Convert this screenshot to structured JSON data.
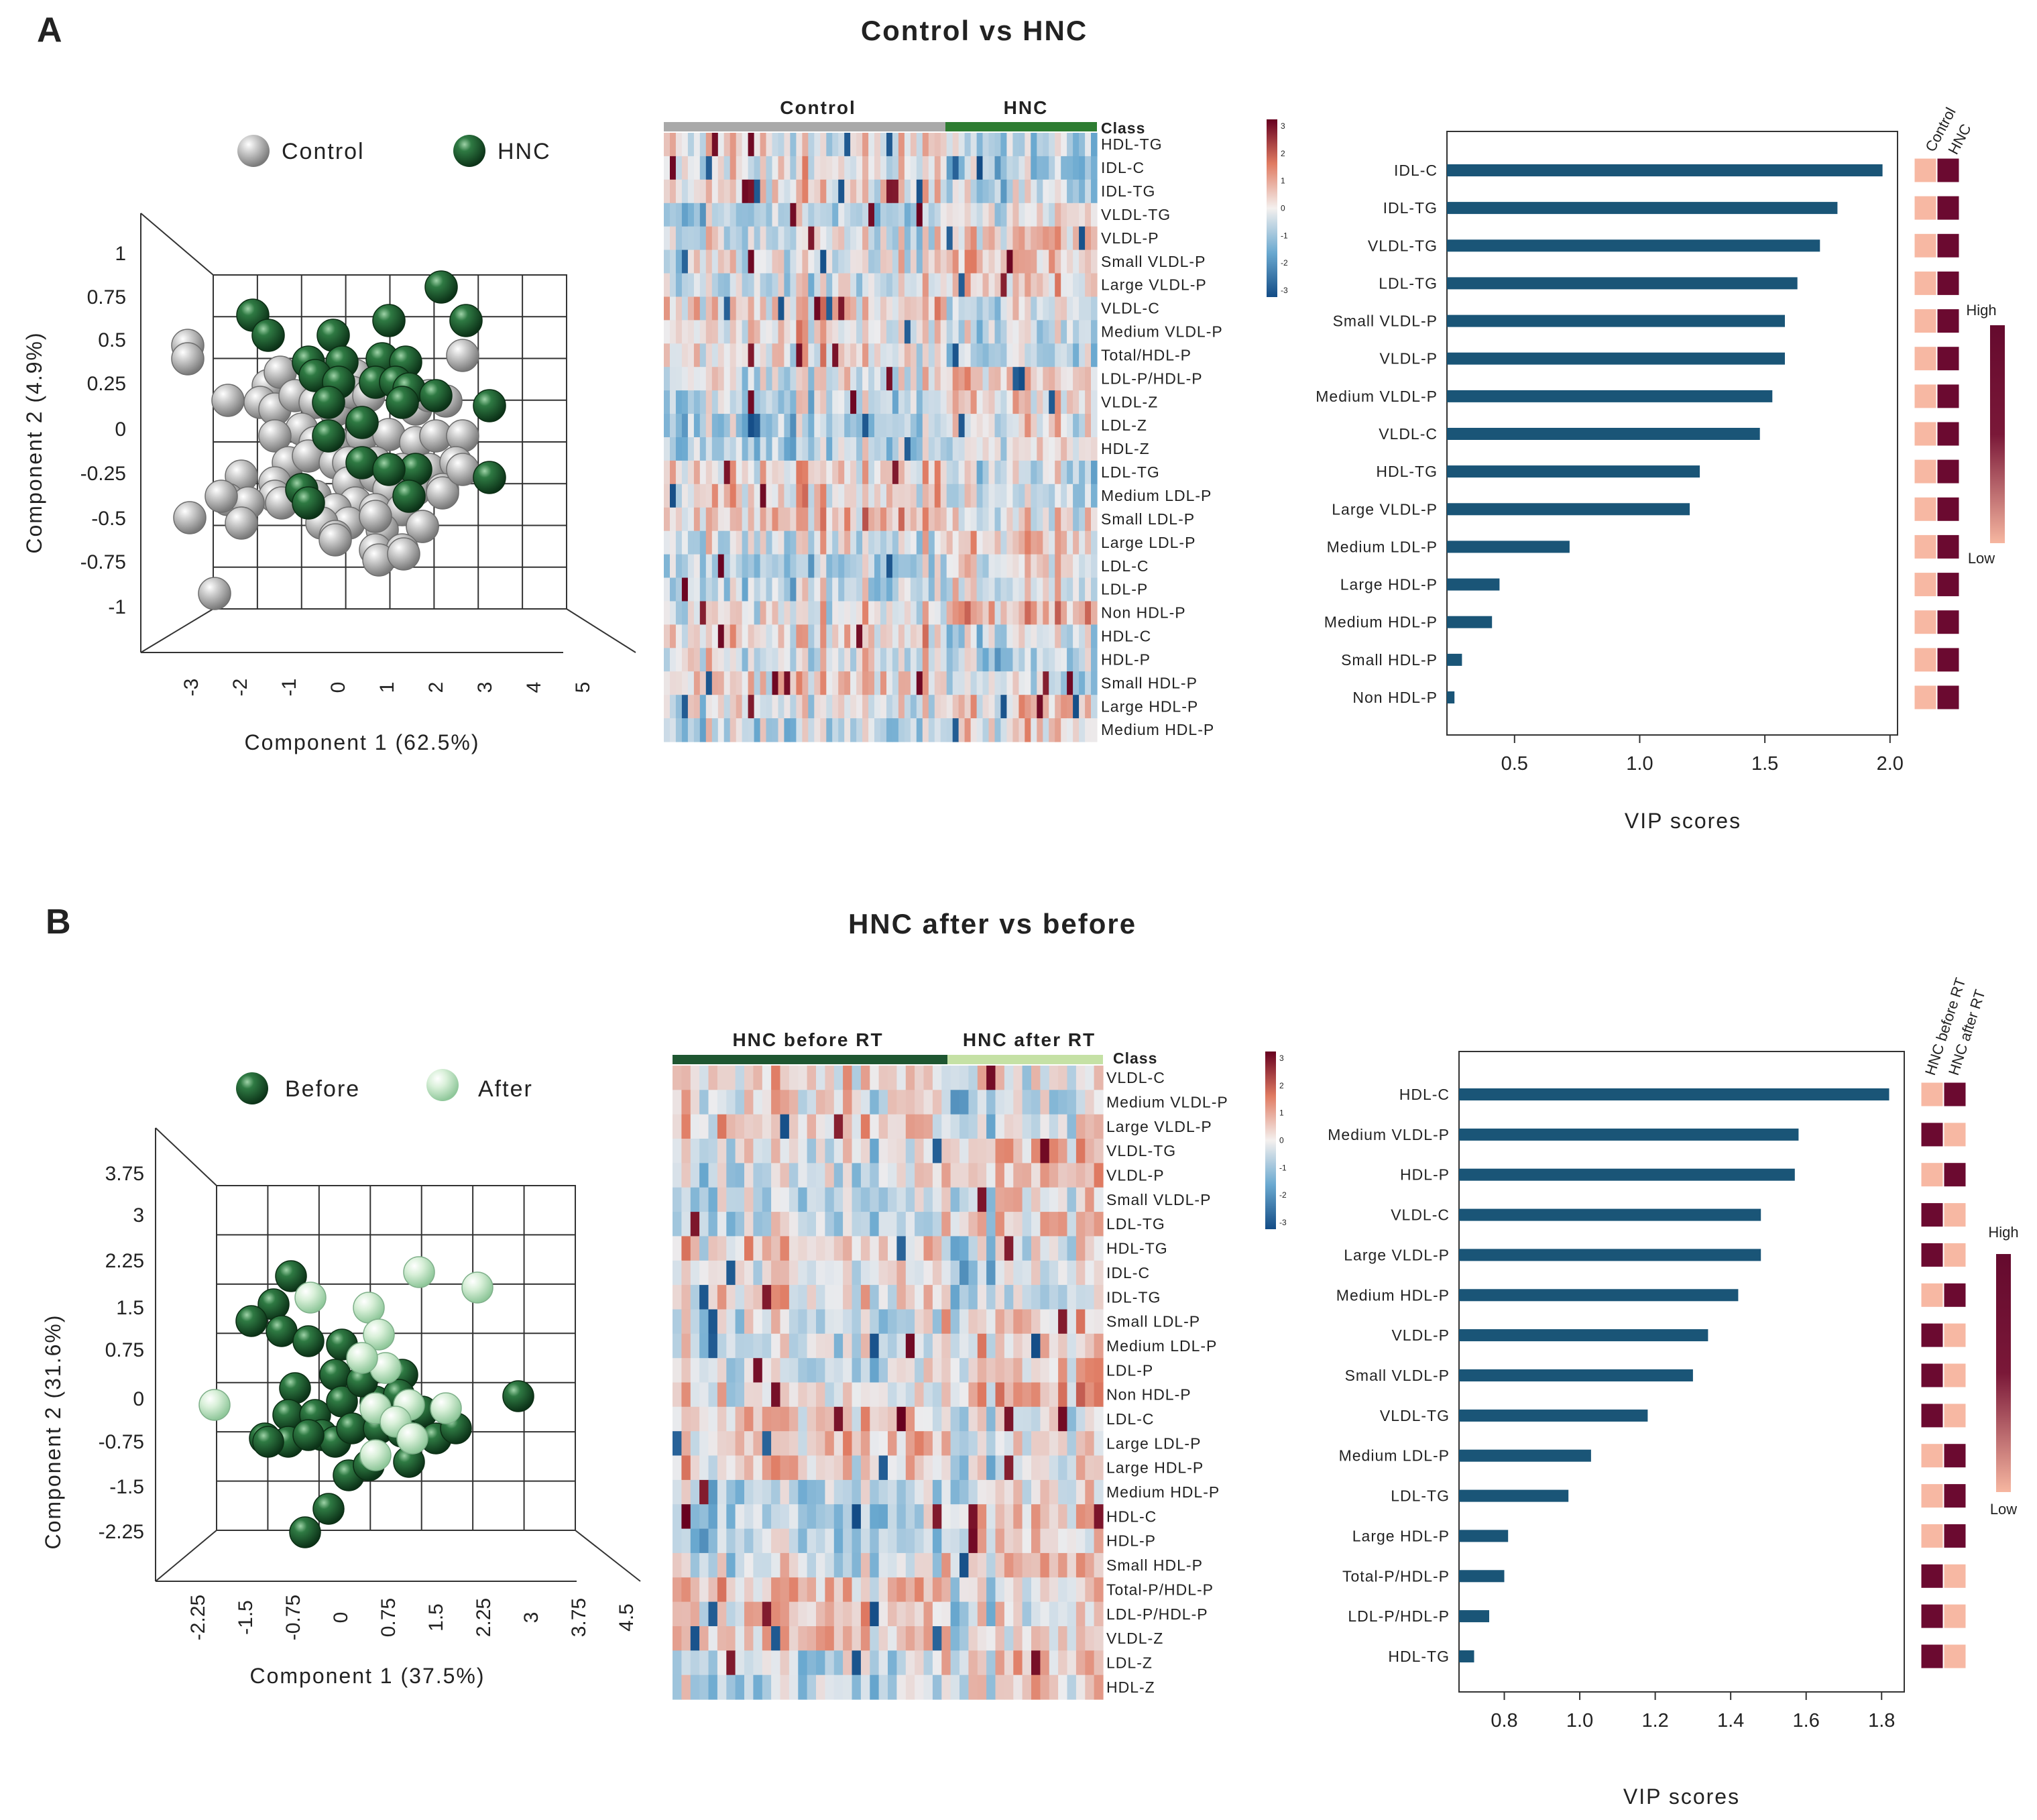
{
  "panelA": {
    "letter": "A",
    "title": "Control vs HNC",
    "pca": {
      "legend": [
        {
          "label": "Control",
          "color": "#a9a9a9"
        },
        {
          "label": "HNC",
          "color": "#1e5631"
        }
      ],
      "xlabel": "Component 1 (62.5%)",
      "ylabel": "Component 2 (4.9%)",
      "xticks": [
        "-3",
        "-2",
        "-1",
        "0",
        "1",
        "2",
        "3",
        "4",
        "5"
      ],
      "yticks": [
        "1",
        "0.75",
        "0.5",
        "0.25",
        "0",
        "-0.25",
        "-0.5",
        "-0.75",
        "-1"
      ]
    },
    "heatmap": {
      "groups": [
        {
          "label": "Control",
          "color": "#a9a9a9"
        },
        {
          "label": "HNC",
          "color": "#2e7d32"
        }
      ],
      "class_label": "Class",
      "rows": [
        "HDL-TG",
        "IDL-C",
        "IDL-TG",
        "VLDL-TG",
        "VLDL-P",
        "Small VLDL-P",
        "Large VLDL-P",
        "VLDL-C",
        "Medium VLDL-P",
        "Total/HDL-P",
        "LDL-P/HDL-P",
        "VLDL-Z",
        "LDL-Z",
        "HDL-Z",
        "LDL-TG",
        "Medium LDL-P",
        "Small LDL-P",
        "Large LDL-P",
        "LDL-C",
        "LDL-P",
        "Non HDL-P",
        "HDL-C",
        "HDL-P",
        "Small HDL-P",
        "Large HDL-P",
        "Medium HDL-P"
      ],
      "scale_ticks": [
        "3",
        "2",
        "1",
        "0",
        "-1",
        "-2",
        "-3"
      ]
    },
    "chart_data": {
      "type": "bar",
      "orientation": "horizontal",
      "xlabel": "VIP scores",
      "categories": [
        "IDL-C",
        "IDL-TG",
        "VLDL-TG",
        "LDL-TG",
        "Small VLDL-P",
        "VLDL-P",
        "Medium VLDL-P",
        "VLDL-C",
        "HDL-TG",
        "Large VLDL-P",
        "Medium LDL-P",
        "Large HDL-P",
        "Medium HDL-P",
        "Small HDL-P",
        "Non HDL-P"
      ],
      "values": [
        1.97,
        1.79,
        1.72,
        1.63,
        1.58,
        1.58,
        1.53,
        1.48,
        1.24,
        1.2,
        0.72,
        0.44,
        0.41,
        0.29,
        0.26
      ],
      "xlim": [
        0.23,
        2.03
      ],
      "xticks": [
        "0.5",
        "1.0",
        "1.5",
        "2.0"
      ],
      "group_labels": [
        "Control",
        "HNC"
      ],
      "group_level": [
        [
          "low",
          "high"
        ],
        [
          "low",
          "high"
        ],
        [
          "low",
          "high"
        ],
        [
          "low",
          "high"
        ],
        [
          "low",
          "high"
        ],
        [
          "low",
          "high"
        ],
        [
          "low",
          "high"
        ],
        [
          "low",
          "high"
        ],
        [
          "low",
          "high"
        ],
        [
          "low",
          "high"
        ],
        [
          "low",
          "high"
        ],
        [
          "low",
          "high"
        ],
        [
          "low",
          "high"
        ],
        [
          "low",
          "high"
        ],
        [
          "low",
          "high"
        ]
      ],
      "legend_high": "High",
      "legend_low": "Low"
    }
  },
  "panelB": {
    "letter": "B",
    "title": "HNC after vs before",
    "pca": {
      "legend": [
        {
          "label": "Before",
          "color": "#1e5631"
        },
        {
          "label": "After",
          "color": "#c8e6c9"
        }
      ],
      "xlabel": "Component 1 (37.5%)",
      "ylabel": "Component 2 (31.6%)",
      "xticks": [
        "-2.25",
        "-1.5",
        "-0.75",
        "0",
        "0.75",
        "1.5",
        "2.25",
        "3",
        "3.75",
        "4.5"
      ],
      "yticks": [
        "3.75",
        "3",
        "2.25",
        "1.5",
        "0.75",
        "0",
        "-0.75",
        "-1.5",
        "-2.25"
      ]
    },
    "heatmap": {
      "groups": [
        {
          "label": "HNC before RT",
          "color": "#1e5631"
        },
        {
          "label": "HNC after RT",
          "color": "#c5e1a5"
        }
      ],
      "class_label": "Class",
      "rows": [
        "VLDL-C",
        "Medium VLDL-P",
        "Large VLDL-P",
        "VLDL-TG",
        "VLDL-P",
        "Small VLDL-P",
        "LDL-TG",
        "HDL-TG",
        "IDL-C",
        "IDL-TG",
        "Small LDL-P",
        "Medium LDL-P",
        "LDL-P",
        "Non HDL-P",
        "LDL-C",
        "Large LDL-P",
        "Large HDL-P",
        "Medium HDL-P",
        "HDL-C",
        "HDL-P",
        "Small HDL-P",
        "Total-P/HDL-P",
        "LDL-P/HDL-P",
        "VLDL-Z",
        "LDL-Z",
        "HDL-Z"
      ],
      "scale_ticks": [
        "3",
        "2",
        "1",
        "0",
        "-1",
        "-2",
        "-3"
      ]
    },
    "chart_data": {
      "type": "bar",
      "orientation": "horizontal",
      "xlabel": "VIP scores",
      "categories": [
        "HDL-C",
        "Medium VLDL-P",
        "HDL-P",
        "VLDL-C",
        "Large VLDL-P",
        "Medium HDL-P",
        "VLDL-P",
        "Small VLDL-P",
        "VLDL-TG",
        "Medium LDL-P",
        "LDL-TG",
        "Large HDL-P",
        "Total-P/HDL-P",
        "LDL-P/HDL-P",
        "HDL-TG"
      ],
      "values": [
        1.82,
        1.58,
        1.57,
        1.48,
        1.48,
        1.42,
        1.34,
        1.3,
        1.18,
        1.03,
        0.97,
        0.81,
        0.8,
        0.76,
        0.72
      ],
      "xlim": [
        0.68,
        1.86
      ],
      "xticks": [
        "0.8",
        "1.0",
        "1.2",
        "1.4",
        "1.6",
        "1.8"
      ],
      "group_labels": [
        "HNC before RT",
        "HNC after RT"
      ],
      "group_level": [
        [
          "low",
          "high"
        ],
        [
          "high",
          "low"
        ],
        [
          "low",
          "high"
        ],
        [
          "high",
          "low"
        ],
        [
          "high",
          "low"
        ],
        [
          "low",
          "high"
        ],
        [
          "high",
          "low"
        ],
        [
          "high",
          "low"
        ],
        [
          "high",
          "low"
        ],
        [
          "low",
          "high"
        ],
        [
          "low",
          "high"
        ],
        [
          "low",
          "high"
        ],
        [
          "high",
          "low"
        ],
        [
          "high",
          "low"
        ],
        [
          "high",
          "low"
        ]
      ],
      "legend_high": "High",
      "legend_low": "Low"
    }
  }
}
